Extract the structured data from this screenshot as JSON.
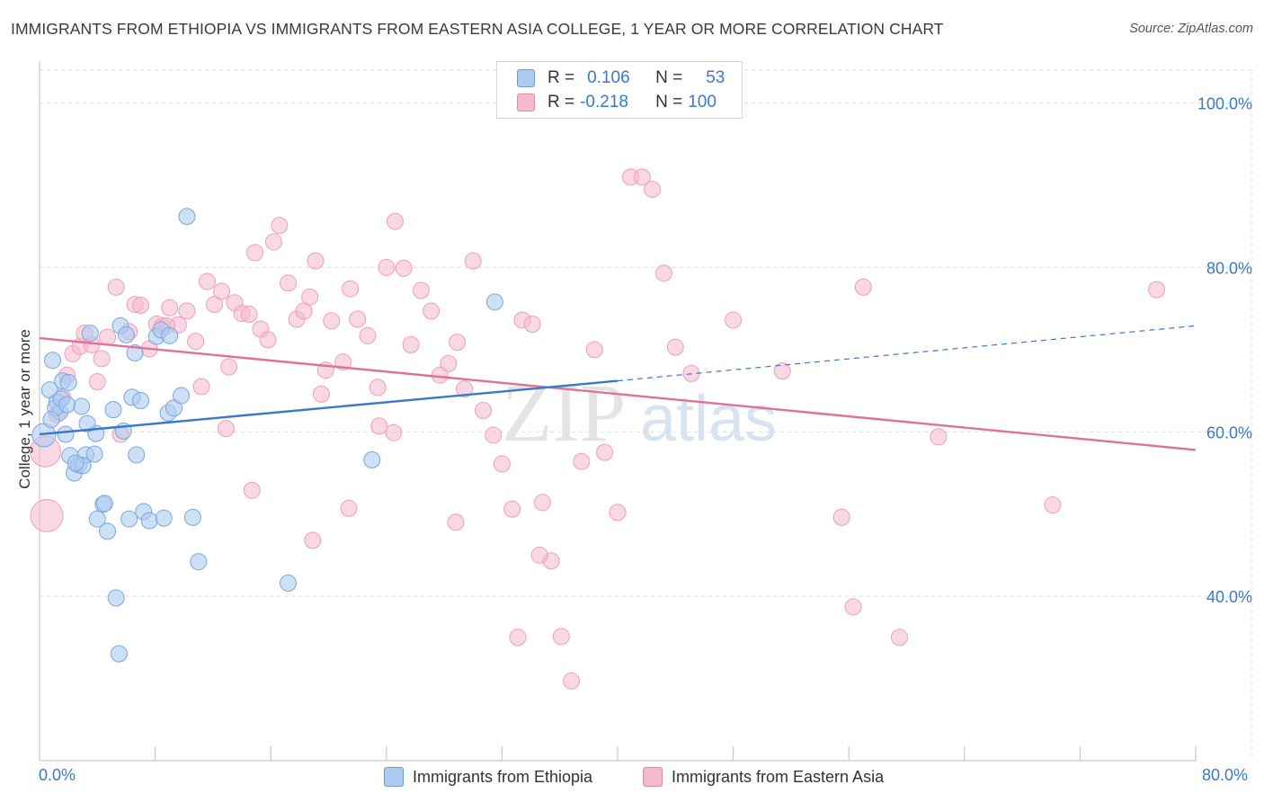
{
  "title": "IMMIGRANTS FROM ETHIOPIA VS IMMIGRANTS FROM EASTERN ASIA COLLEGE, 1 YEAR OR MORE CORRELATION CHART",
  "source": "Source: ZipAtlas.com",
  "watermark": {
    "zip": "ZIP",
    "atlas": "atlas"
  },
  "legend": {
    "series1": {
      "r_label": "R =",
      "r_value": "0.106",
      "n_label": "N =",
      "n_value": "53"
    },
    "series2": {
      "r_label": "R =",
      "r_value": "-0.218",
      "n_label": "N =",
      "n_value": "100"
    }
  },
  "colors": {
    "blue": "#3a78c9",
    "blue_fill": "#aecbf0",
    "pink": "#e0709a",
    "pink_fill": "#f5b8cc",
    "grid": "#dcdcdc"
  },
  "chart_data": {
    "type": "scatter",
    "title": "IMMIGRANTS FROM ETHIOPIA VS IMMIGRANTS FROM EASTERN ASIA COLLEGE, 1 YEAR OR MORE CORRELATION CHART",
    "xlabel": "",
    "ylabel": "College, 1 year or more",
    "xlim": [
      0,
      80
    ],
    "ylim": [
      20,
      104
    ],
    "x_tick_labels": [
      "0.0%",
      "80.0%"
    ],
    "y_ticks": [
      40,
      60,
      80,
      100
    ],
    "y_tick_labels": [
      "40.0%",
      "60.0%",
      "80.0%",
      "100.0%"
    ],
    "grid": true,
    "series": [
      {
        "name": "Immigrants from Ethiopia",
        "color": "#3a78c9",
        "r": 0.106,
        "n": 53,
        "trend": {
          "x0": 0,
          "y0": 59.7,
          "x1": 40,
          "y1": 66.2,
          "dash_x1": 80,
          "dash_y1": 72.9
        },
        "points": [
          [
            0.3,
            59.6
          ],
          [
            0.7,
            65.1
          ],
          [
            0.9,
            68.7
          ],
          [
            1.2,
            63.6
          ],
          [
            1.4,
            62.4
          ],
          [
            1.6,
            66.2
          ],
          [
            1.8,
            59.7
          ],
          [
            2.1,
            57.1
          ],
          [
            2.4,
            55.0
          ],
          [
            2.7,
            56.0
          ],
          [
            1.1,
            62.9
          ],
          [
            2.9,
            63.1
          ],
          [
            3.2,
            57.2
          ],
          [
            3.5,
            72.0
          ],
          [
            3.9,
            59.8
          ],
          [
            4.4,
            51.2
          ],
          [
            4.7,
            47.9
          ],
          [
            5.1,
            62.7
          ],
          [
            5.6,
            72.9
          ],
          [
            6.0,
            71.8
          ],
          [
            6.4,
            64.2
          ],
          [
            6.7,
            57.2
          ],
          [
            7.2,
            50.3
          ],
          [
            7.6,
            49.2
          ],
          [
            8.1,
            71.6
          ],
          [
            8.4,
            72.4
          ],
          [
            8.9,
            62.3
          ],
          [
            9.3,
            62.9
          ],
          [
            9.8,
            64.4
          ],
          [
            10.2,
            86.2
          ],
          [
            10.6,
            49.6
          ],
          [
            11.0,
            44.2
          ],
          [
            5.3,
            39.8
          ],
          [
            5.5,
            33.0
          ],
          [
            17.2,
            41.6
          ],
          [
            23.0,
            56.6
          ],
          [
            31.5,
            75.8
          ],
          [
            1.5,
            64.0
          ],
          [
            3.0,
            55.9
          ],
          [
            4.5,
            51.3
          ],
          [
            6.2,
            49.4
          ],
          [
            7.0,
            63.8
          ],
          [
            8.6,
            49.5
          ],
          [
            2.0,
            66.0
          ],
          [
            3.8,
            57.3
          ],
          [
            1.9,
            63.3
          ],
          [
            4.0,
            49.4
          ],
          [
            5.8,
            60.1
          ],
          [
            9.0,
            71.7
          ],
          [
            2.5,
            56.2
          ],
          [
            6.6,
            69.6
          ],
          [
            0.8,
            61.5
          ],
          [
            3.3,
            61.0
          ]
        ]
      },
      {
        "name": "Immigrants from Eastern Asia",
        "color": "#e0709a",
        "r": -0.218,
        "n": 100,
        "trend": {
          "x0": 0,
          "y0": 71.4,
          "x1": 80,
          "y1": 57.8
        },
        "points": [
          [
            0.4,
            57.6
          ],
          [
            0.5,
            49.8
          ],
          [
            1.2,
            62.1
          ],
          [
            1.6,
            64.2
          ],
          [
            1.9,
            66.9
          ],
          [
            2.3,
            69.5
          ],
          [
            2.8,
            70.4
          ],
          [
            3.1,
            72.0
          ],
          [
            3.6,
            70.6
          ],
          [
            4.0,
            66.1
          ],
          [
            4.3,
            68.9
          ],
          [
            4.7,
            71.5
          ],
          [
            5.3,
            77.6
          ],
          [
            5.6,
            59.7
          ],
          [
            6.2,
            72.2
          ],
          [
            6.6,
            75.5
          ],
          [
            7.0,
            75.4
          ],
          [
            7.6,
            70.1
          ],
          [
            8.1,
            73.1
          ],
          [
            8.5,
            72.9
          ],
          [
            9.0,
            75.1
          ],
          [
            9.6,
            73.0
          ],
          [
            10.2,
            74.7
          ],
          [
            10.8,
            71.0
          ],
          [
            11.2,
            65.5
          ],
          [
            11.6,
            78.3
          ],
          [
            12.1,
            75.5
          ],
          [
            12.6,
            77.1
          ],
          [
            13.1,
            67.9
          ],
          [
            13.5,
            75.7
          ],
          [
            14.0,
            74.4
          ],
          [
            14.5,
            74.3
          ],
          [
            14.9,
            81.8
          ],
          [
            15.3,
            72.5
          ],
          [
            15.8,
            71.2
          ],
          [
            16.2,
            83.1
          ],
          [
            16.6,
            85.1
          ],
          [
            17.2,
            78.1
          ],
          [
            17.8,
            73.7
          ],
          [
            18.3,
            74.7
          ],
          [
            18.7,
            76.4
          ],
          [
            19.1,
            80.8
          ],
          [
            19.5,
            64.6
          ],
          [
            20.2,
            73.5
          ],
          [
            21.0,
            68.5
          ],
          [
            21.5,
            77.4
          ],
          [
            22.0,
            73.7
          ],
          [
            22.7,
            71.7
          ],
          [
            23.4,
            65.4
          ],
          [
            24.0,
            80.0
          ],
          [
            24.6,
            85.6
          ],
          [
            25.2,
            79.9
          ],
          [
            25.7,
            70.6
          ],
          [
            26.4,
            77.2
          ],
          [
            27.1,
            74.7
          ],
          [
            27.7,
            66.9
          ],
          [
            28.3,
            68.3
          ],
          [
            28.9,
            70.9
          ],
          [
            29.4,
            65.2
          ],
          [
            30.0,
            80.8
          ],
          [
            30.7,
            62.6
          ],
          [
            31.4,
            59.6
          ],
          [
            32.0,
            56.1
          ],
          [
            32.7,
            50.6
          ],
          [
            33.4,
            73.6
          ],
          [
            34.1,
            73.1
          ],
          [
            34.8,
            51.4
          ],
          [
            35.4,
            44.3
          ],
          [
            36.1,
            35.1
          ],
          [
            36.8,
            29.7
          ],
          [
            37.5,
            56.4
          ],
          [
            38.4,
            70.0
          ],
          [
            39.1,
            57.5
          ],
          [
            40.0,
            50.2
          ],
          [
            40.9,
            91.0
          ],
          [
            41.7,
            91.0
          ],
          [
            42.4,
            89.5
          ],
          [
            43.2,
            79.3
          ],
          [
            44.0,
            70.3
          ],
          [
            45.1,
            67.1
          ],
          [
            48.0,
            73.6
          ],
          [
            51.4,
            67.4
          ],
          [
            55.5,
            49.6
          ],
          [
            56.3,
            38.7
          ],
          [
            57.0,
            77.6
          ],
          [
            59.5,
            35.0
          ],
          [
            62.2,
            59.4
          ],
          [
            70.1,
            51.1
          ],
          [
            77.3,
            77.3
          ],
          [
            19.8,
            67.5
          ],
          [
            24.5,
            59.9
          ],
          [
            28.8,
            49.0
          ],
          [
            23.5,
            60.7
          ],
          [
            18.9,
            46.8
          ],
          [
            34.6,
            45.0
          ],
          [
            33.1,
            35.0
          ],
          [
            14.7,
            52.9
          ],
          [
            21.4,
            50.7
          ],
          [
            12.9,
            60.4
          ],
          [
            8.8,
            72.9
          ]
        ]
      }
    ]
  }
}
